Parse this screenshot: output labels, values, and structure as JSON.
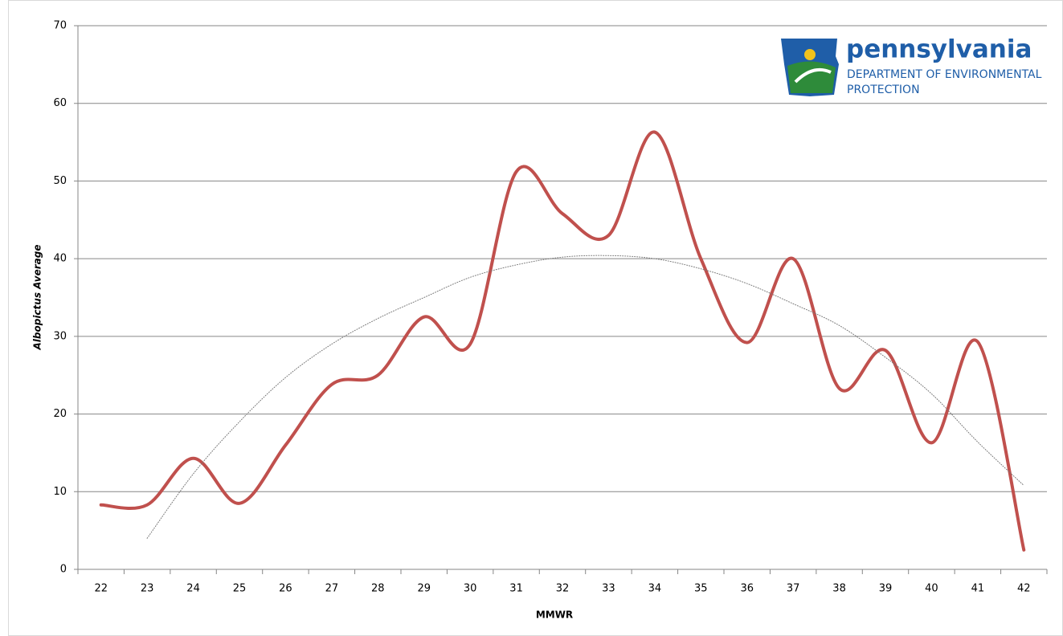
{
  "chart_data": {
    "type": "line",
    "x_label": "MMWR",
    "y_label": "Albopictus Average",
    "categories": [
      "22",
      "23",
      "24",
      "25",
      "26",
      "27",
      "28",
      "29",
      "30",
      "31",
      "32",
      "33",
      "34",
      "35",
      "36",
      "37",
      "38",
      "39",
      "40",
      "41",
      "42"
    ],
    "series": [
      {
        "color": "#c0504d",
        "smooth": true,
        "values": [
          8.3,
          8.3,
          14.3,
          8.5,
          16,
          23.8,
          25,
          32.5,
          29,
          51.2,
          45.8,
          43,
          56.3,
          40,
          29.2,
          40,
          23.3,
          28.2,
          16.3,
          29.3,
          2.5
        ]
      },
      {
        "color": "#777777",
        "dotted": true,
        "smooth": true,
        "values": [
          null,
          4,
          12.3,
          19,
          24.7,
          29,
          32.3,
          35,
          37.6,
          39.2,
          40.2,
          40.4,
          40,
          38.7,
          36.8,
          34.2,
          31.4,
          27.3,
          22.6,
          16.4,
          10.8
        ]
      }
    ],
    "ylim": [
      0,
      70
    ],
    "yticks": [
      0,
      10,
      20,
      30,
      40,
      50,
      60,
      70
    ],
    "grid": true
  },
  "logo": {
    "name": "pennsylvania",
    "line1": "DEPARTMENT OF ENVIRONMENTAL",
    "line2": "PROTECTION"
  }
}
